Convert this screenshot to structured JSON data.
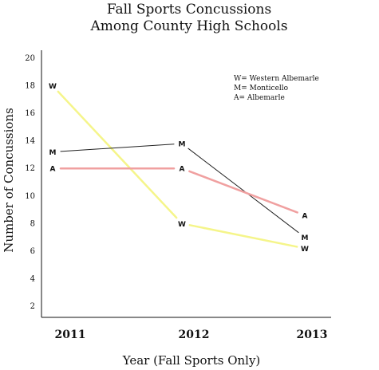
{
  "chart_data": {
    "type": "line",
    "title": [
      "Fall Sports Concussions",
      "Among County High Schools"
    ],
    "xlabel": "Year (Fall Sports Only)",
    "ylabel": "Number of Concussions",
    "categories": [
      "2011",
      "2012",
      "2013"
    ],
    "y_ticks": [
      2,
      4,
      6,
      8,
      10,
      12,
      14,
      16,
      18,
      20
    ],
    "ylim": [
      1,
      20.5
    ],
    "grid": false,
    "legend_position": "top-right",
    "legend": [
      "W= Western Albemarle",
      "M= Monticello",
      "A= Albemarle"
    ],
    "series": [
      {
        "marker": "W",
        "color": "#f5f58a",
        "values": [
          18,
          8,
          6.2
        ]
      },
      {
        "marker": "M",
        "color": "#222222",
        "values": [
          13.2,
          13.8,
          7
        ]
      },
      {
        "marker": "A",
        "color": "#f0a0a0",
        "values": [
          12,
          12,
          8.6
        ]
      }
    ]
  }
}
